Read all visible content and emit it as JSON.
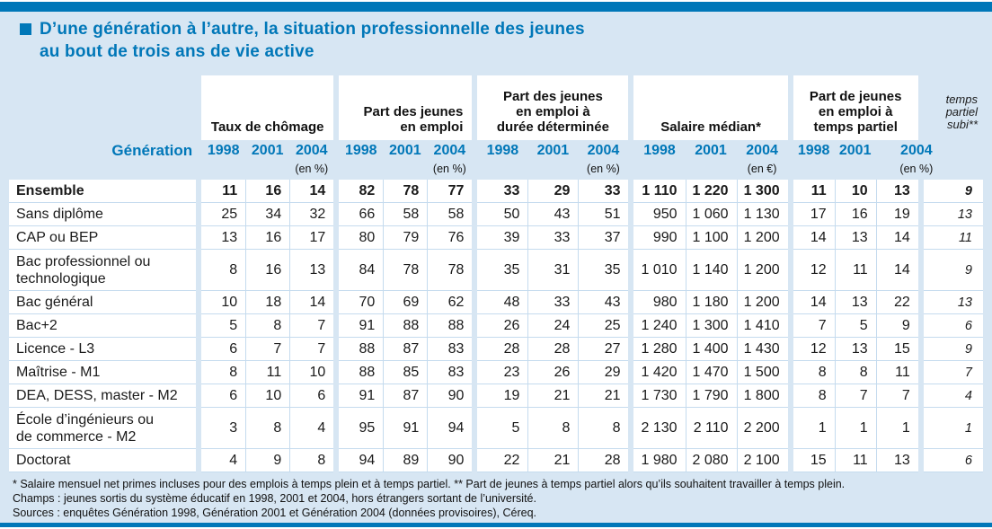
{
  "page": {
    "title_line1": "D’une génération à l’autre, la situation professionnelle des jeunes",
    "title_line2": "au bout de trois ans de vie active"
  },
  "colors": {
    "accent_blue": "#0077B8",
    "page_background": "#D7E6F3",
    "table_line": "#C5DBEE",
    "text": "#1A1A1A"
  },
  "table": {
    "generation_label": "Génération",
    "groups": [
      {
        "label": "Taux de chômage",
        "years": [
          "1998",
          "2001",
          "2004"
        ],
        "unit": "(en %)"
      },
      {
        "label": "Part des jeunes\nen emploi",
        "years": [
          "1998",
          "2001",
          "2004"
        ],
        "unit": "(en %)"
      },
      {
        "label": "Part des jeunes\nen emploi à\ndurée déterminée",
        "years": [
          "1998",
          "2001",
          "2004"
        ],
        "unit": "(en %)"
      },
      {
        "label": "Salaire médian*",
        "years": [
          "1998",
          "2001",
          "2004"
        ],
        "unit": "(en €)"
      },
      {
        "label": "Part de jeunes\nen emploi à\ntemps partiel",
        "years": [
          "1998",
          "2001",
          "2004"
        ],
        "unit": "(en %)"
      }
    ],
    "last_col": {
      "label": "temps\npartiel\nsubi**"
    },
    "rows": [
      {
        "label": "Ensemble",
        "bold": true,
        "two_line": false,
        "values": [
          "11",
          "16",
          "14",
          "82",
          "78",
          "77",
          "33",
          "29",
          "33",
          "1 110",
          "1 220",
          "1 300",
          "11",
          "10",
          "13",
          "9"
        ]
      },
      {
        "label": "Sans diplôme",
        "bold": false,
        "two_line": false,
        "values": [
          "25",
          "34",
          "32",
          "66",
          "58",
          "58",
          "50",
          "43",
          "51",
          "950",
          "1 060",
          "1 130",
          "17",
          "16",
          "19",
          "13"
        ]
      },
      {
        "label": "CAP ou BEP",
        "bold": false,
        "two_line": false,
        "values": [
          "13",
          "16",
          "17",
          "80",
          "79",
          "76",
          "39",
          "33",
          "37",
          "990",
          "1 100",
          "1 200",
          "14",
          "13",
          "14",
          "11"
        ]
      },
      {
        "label": "Bac professionnel ou\ntechnologique",
        "bold": false,
        "two_line": true,
        "values": [
          "8",
          "16",
          "13",
          "84",
          "78",
          "78",
          "35",
          "31",
          "35",
          "1 010",
          "1 140",
          "1 200",
          "12",
          "11",
          "14",
          "9"
        ]
      },
      {
        "label": "Bac général",
        "bold": false,
        "two_line": false,
        "values": [
          "10",
          "18",
          "14",
          "70",
          "69",
          "62",
          "48",
          "33",
          "43",
          "980",
          "1 180",
          "1 200",
          "14",
          "13",
          "22",
          "13"
        ]
      },
      {
        "label": "Bac+2",
        "bold": false,
        "two_line": false,
        "values": [
          "5",
          "8",
          "7",
          "91",
          "88",
          "88",
          "26",
          "24",
          "25",
          "1 240",
          "1 300",
          "1 410",
          "7",
          "5",
          "9",
          "6"
        ]
      },
      {
        "label": "Licence - L3",
        "bold": false,
        "two_line": false,
        "values": [
          "6",
          "7",
          "7",
          "88",
          "87",
          "83",
          "28",
          "28",
          "27",
          "1 280",
          "1 400",
          "1 430",
          "12",
          "13",
          "15",
          "9"
        ]
      },
      {
        "label": "Maîtrise - M1",
        "bold": false,
        "two_line": false,
        "values": [
          "8",
          "11",
          "10",
          "88",
          "85",
          "83",
          "23",
          "26",
          "29",
          "1 420",
          "1 470",
          "1 500",
          "8",
          "8",
          "11",
          "7"
        ]
      },
      {
        "label": "DEA, DESS, master - M2",
        "bold": false,
        "two_line": false,
        "values": [
          "6",
          "10",
          "6",
          "91",
          "87",
          "90",
          "19",
          "21",
          "21",
          "1 730",
          "1 790",
          "1 800",
          "8",
          "7",
          "7",
          "4"
        ]
      },
      {
        "label": "École d’ingénieurs ou\nde commerce - M2",
        "bold": false,
        "two_line": true,
        "values": [
          "3",
          "8",
          "4",
          "95",
          "91",
          "94",
          "5",
          "8",
          "8",
          "2 130",
          "2 110",
          "2 200",
          "1",
          "1",
          "1",
          "1"
        ]
      },
      {
        "label": "Doctorat",
        "bold": false,
        "two_line": false,
        "values": [
          "4",
          "9",
          "8",
          "94",
          "89",
          "90",
          "22",
          "21",
          "28",
          "1 980",
          "2 080",
          "2 100",
          "15",
          "11",
          "13",
          "6"
        ]
      }
    ],
    "footnotes": [
      "* Salaire mensuel net primes incluses pour des emplois à temps plein et à temps partiel. ** Part de jeunes à temps partiel alors qu’ils souhaitent travailler à temps plein.",
      "Champs : jeunes sortis du système éducatif en 1998, 2001 et 2004, hors étrangers sortant de l’université.",
      "Sources : enquêtes Génération 1998, Génération 2001 et Génération 2004 (données provisoires), Céreq."
    ]
  }
}
